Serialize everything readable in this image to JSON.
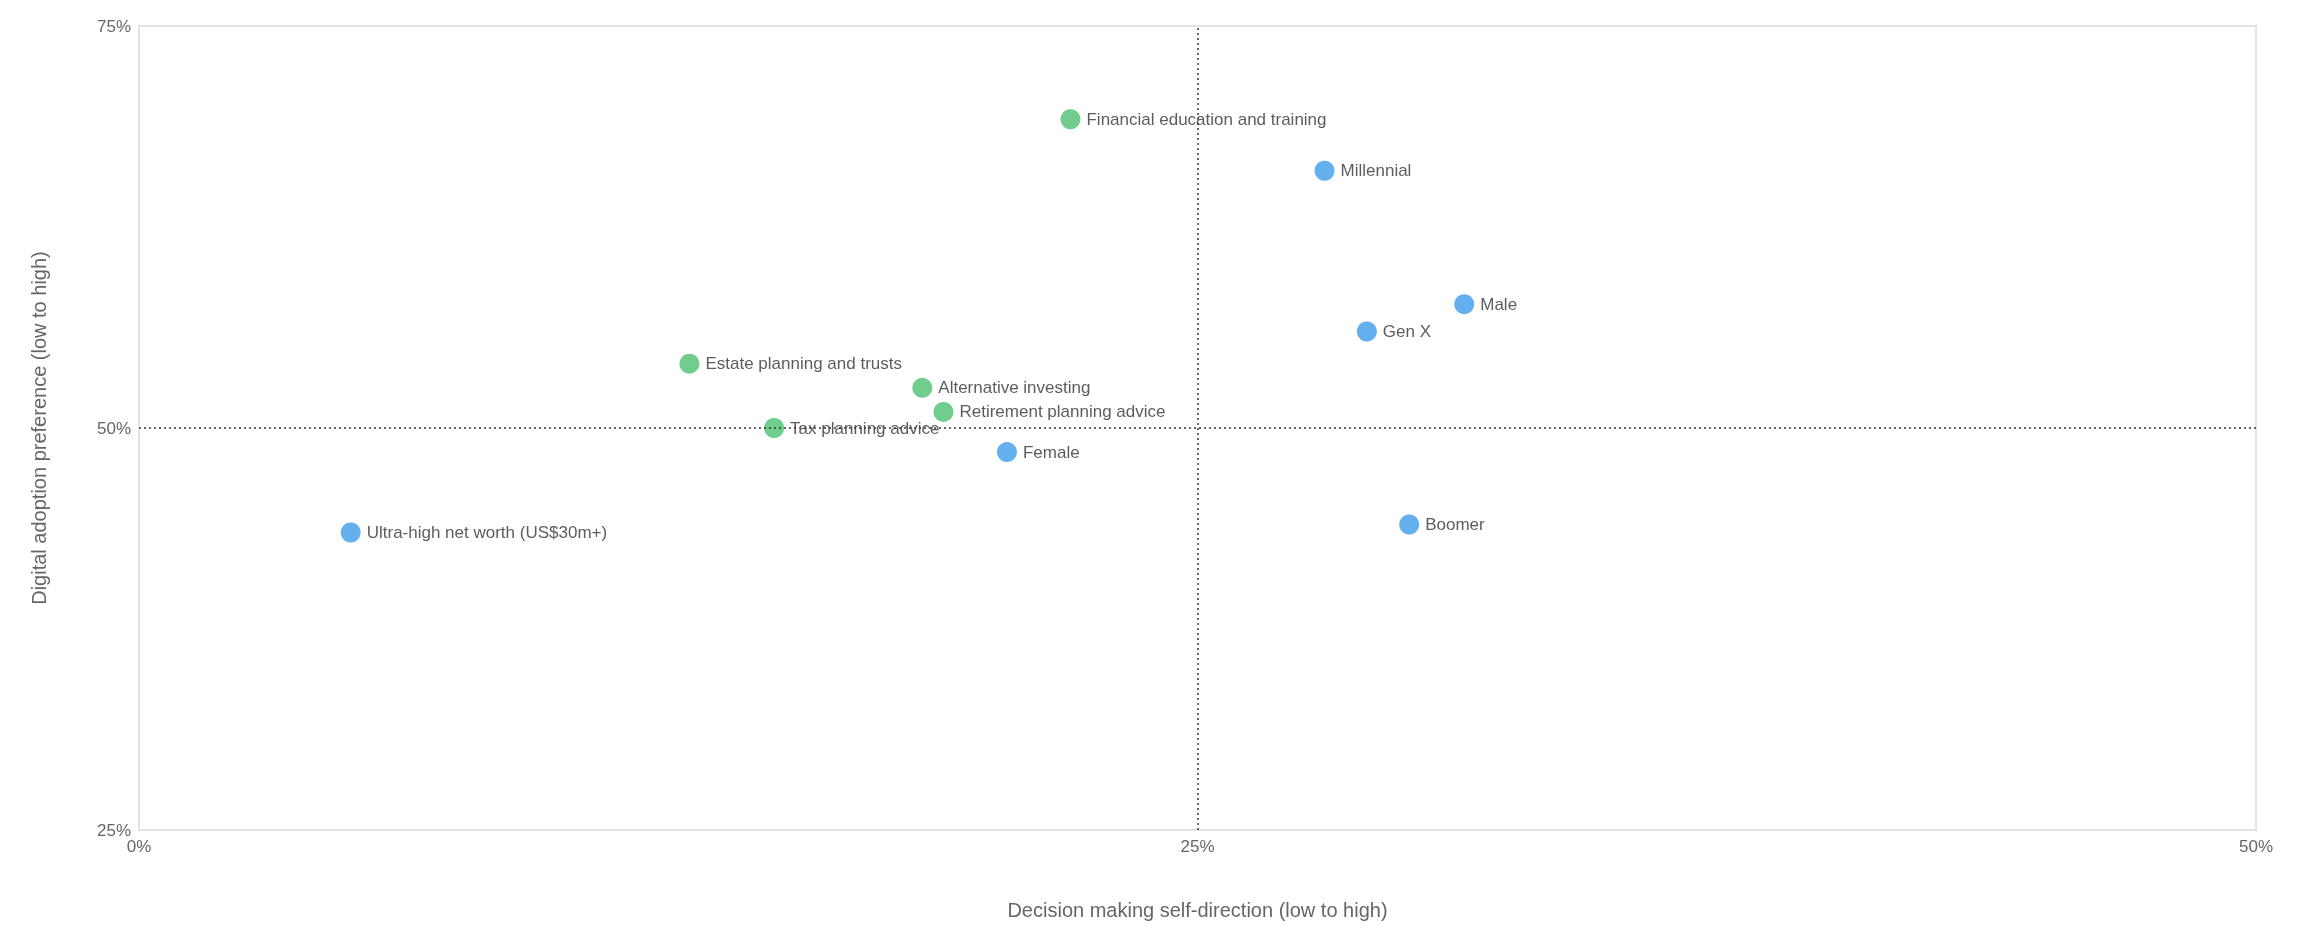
{
  "chart_data": {
    "type": "scatter",
    "xlabel": "Decision making self-direction (low to high)",
    "ylabel": "Digital adoption preference (low to high)",
    "xlim": [
      0,
      50
    ],
    "xticks": [
      {
        "value": 0,
        "label": "0%"
      },
      {
        "value": 25,
        "label": "25%"
      },
      {
        "value": 50,
        "label": "50%"
      }
    ],
    "ylim": [
      25,
      75
    ],
    "yticks": [
      {
        "value": 25,
        "label": "25%"
      },
      {
        "value": 50,
        "label": "50%"
      },
      {
        "value": 75,
        "label": "75%"
      }
    ],
    "grid": false,
    "marker": "circle",
    "series": [
      {
        "color": "#4cc070",
        "x": [
          22,
          13,
          18.5,
          19,
          15
        ],
        "values": [
          69.2,
          54,
          52.5,
          51,
          50
        ]
      },
      {
        "color": "#3d9be9",
        "x": [
          28,
          31.3,
          29,
          20.5,
          30,
          5
        ],
        "values": [
          66,
          57.7,
          56,
          48.5,
          44,
          43.5
        ]
      }
    ],
    "ref_lines": [
      {
        "axis": "x",
        "value": 25,
        "color": "#333333",
        "line_style": "dotted"
      },
      {
        "axis": "y",
        "value": 50,
        "color": "#333333",
        "line_style": "dotted"
      }
    ],
    "annotations": [
      {
        "text": "Financial education and training",
        "x": 22,
        "y": 69.2
      },
      {
        "text": "Estate planning and trusts",
        "x": 13,
        "y": 54
      },
      {
        "text": "Alternative investing",
        "x": 18.5,
        "y": 52.5
      },
      {
        "text": "Retirement planning advice",
        "x": 19,
        "y": 51
      },
      {
        "text": "Tax planning advice",
        "x": 15,
        "y": 50
      },
      {
        "text": "Millennial",
        "x": 28,
        "y": 66
      },
      {
        "text": "Male",
        "x": 31.3,
        "y": 57.7
      },
      {
        "text": "Gen X",
        "x": 29,
        "y": 56
      },
      {
        "text": "Female",
        "x": 20.5,
        "y": 48.5
      },
      {
        "text": "Boomer",
        "x": 30,
        "y": 44
      },
      {
        "text": "Ultra-high net worth (US$30m+)",
        "x": 5,
        "y": 43.5
      }
    ]
  }
}
